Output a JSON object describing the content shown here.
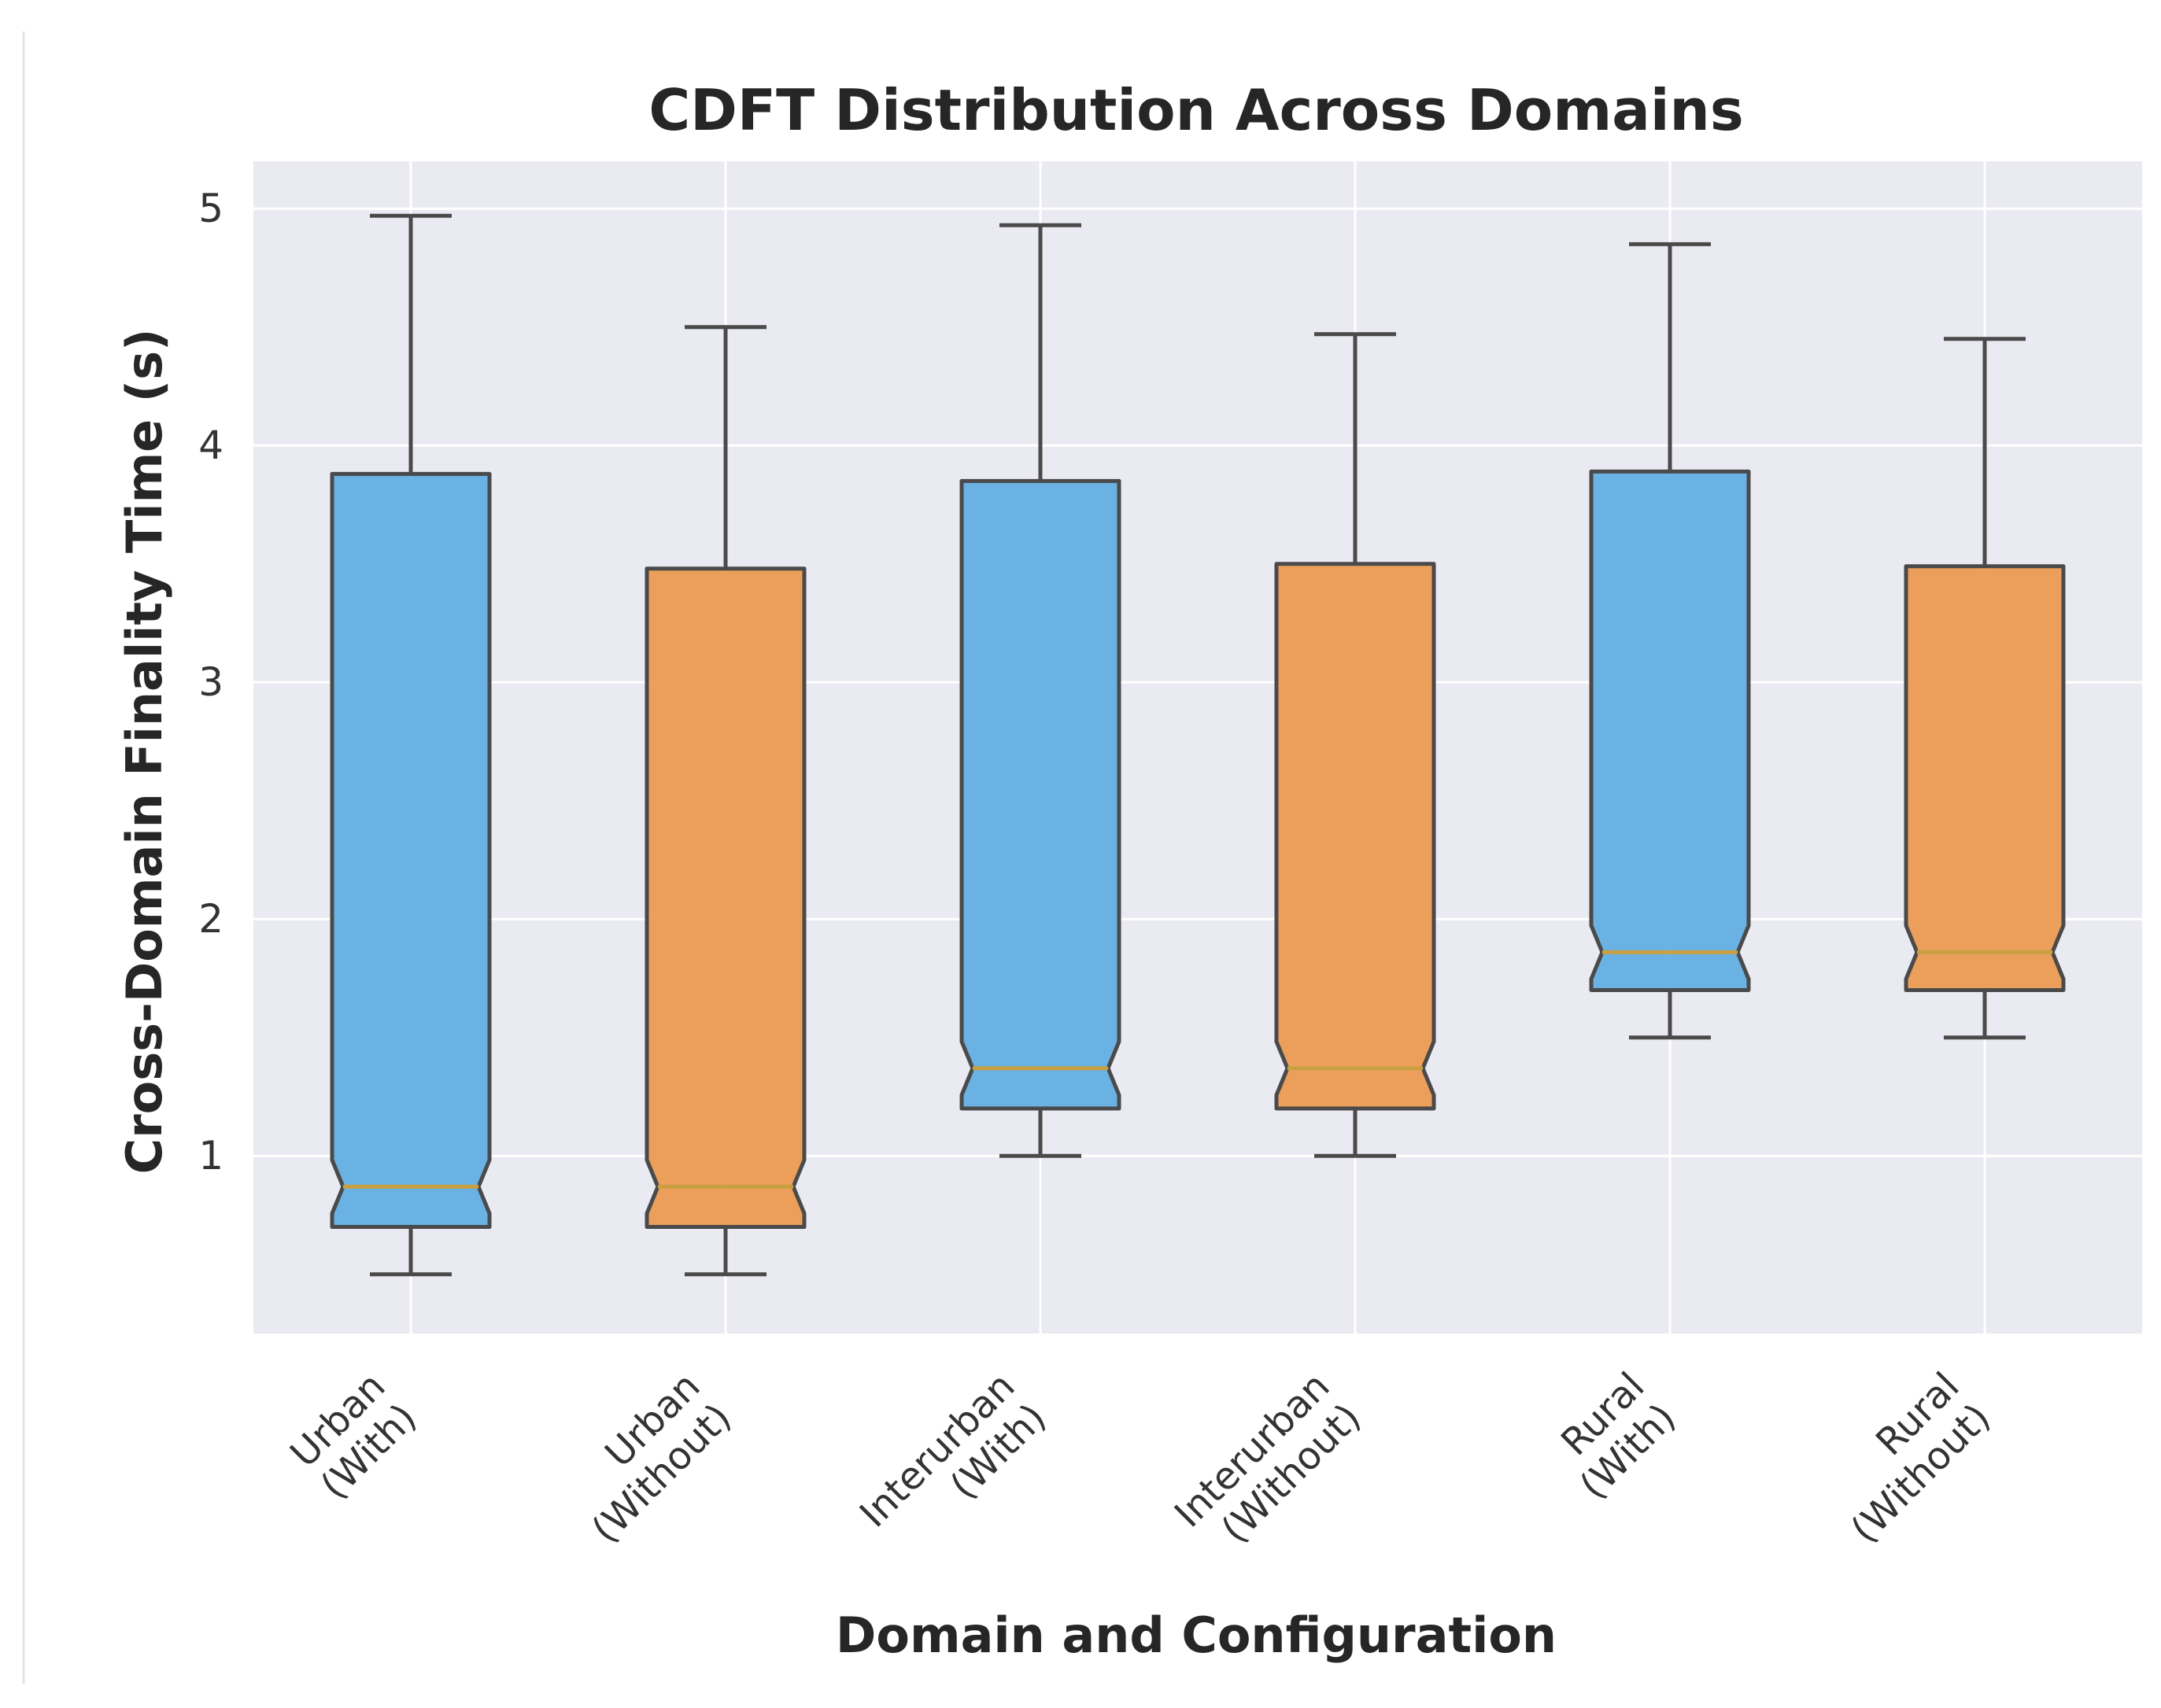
{
  "chart_data": {
    "type": "boxplot",
    "title": "CDFT Distribution Across Domains",
    "xlabel": "Domain and Configuration",
    "ylabel": "Cross-Domain Finality Time (s)",
    "ylim": [
      0.25,
      5.2
    ],
    "yticks": [
      1,
      2,
      3,
      4,
      5
    ],
    "grid": true,
    "notched": true,
    "colors": {
      "with": "#5DADE2",
      "without": "#EB984E",
      "edge": "#4a4a4a",
      "median": "#c8a040",
      "plot_bg": "#EAEAF2",
      "grid": "#ffffff"
    },
    "categories": [
      {
        "line1": "Urban",
        "line2": "(With)",
        "config": "with",
        "whisker_low": 0.5,
        "q1": 0.7,
        "median": 0.87,
        "q3": 3.88,
        "whisker_high": 4.97
      },
      {
        "line1": "Urban",
        "line2": "(Without)",
        "config": "without",
        "whisker_low": 0.5,
        "q1": 0.7,
        "median": 0.87,
        "q3": 3.48,
        "whisker_high": 4.5
      },
      {
        "line1": "Interurban",
        "line2": "(With)",
        "config": "with",
        "whisker_low": 1.0,
        "q1": 1.2,
        "median": 1.37,
        "q3": 3.85,
        "whisker_high": 4.93
      },
      {
        "line1": "Interurban",
        "line2": "(Without)",
        "config": "without",
        "whisker_low": 1.0,
        "q1": 1.2,
        "median": 1.37,
        "q3": 3.5,
        "whisker_high": 4.47
      },
      {
        "line1": "Rural",
        "line2": "(With)",
        "config": "with",
        "whisker_low": 1.5,
        "q1": 1.7,
        "median": 1.86,
        "q3": 3.89,
        "whisker_high": 4.85
      },
      {
        "line1": "Rural",
        "line2": "(Without)",
        "config": "without",
        "whisker_low": 1.5,
        "q1": 1.7,
        "median": 1.86,
        "q3": 3.49,
        "whisker_high": 4.45
      }
    ]
  }
}
